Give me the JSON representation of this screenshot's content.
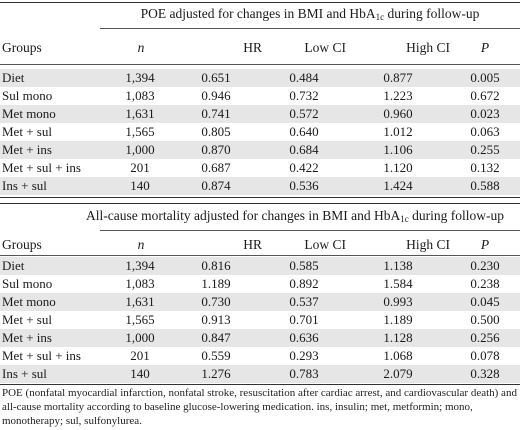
{
  "sections": [
    {
      "title_main": "POE adjusted for changes in BMI and HbA",
      "title_sub": "1c",
      "title_end": " during follow-up",
      "headers": [
        "Groups",
        "n",
        "HR",
        "Low CI",
        "High CI",
        "P"
      ],
      "rows": [
        [
          "Diet",
          "1,394",
          "0.651",
          "0.484",
          "0.877",
          "0.005"
        ],
        [
          "Sul mono",
          "1,083",
          "0.946",
          "0.732",
          "1.223",
          "0.672"
        ],
        [
          "Met mono",
          "1,631",
          "0.741",
          "0.572",
          "0.960",
          "0.023"
        ],
        [
          "Met + sul",
          "1,565",
          "0.805",
          "0.640",
          "1.012",
          "0.063"
        ],
        [
          "Met + ins",
          "1,000",
          "0.870",
          "0.684",
          "1.106",
          "0.255"
        ],
        [
          "Met + sul + ins",
          "201",
          "0.687",
          "0.422",
          "1.120",
          "0.132"
        ],
        [
          "Ins + sul",
          "140",
          "0.874",
          "0.536",
          "1.424",
          "0.588"
        ]
      ]
    },
    {
      "title_main": "All-cause mortality adjusted for changes in BMI and HbA",
      "title_sub": "1c",
      "title_end": " during follow-up",
      "headers": [
        "Groups",
        "n",
        "HR",
        "Low CI",
        "High CI",
        "P"
      ],
      "rows": [
        [
          "Diet",
          "1,394",
          "0.816",
          "0.585",
          "1.138",
          "0.230"
        ],
        [
          "Sul mono",
          "1,083",
          "1.189",
          "0.892",
          "1.584",
          "0.238"
        ],
        [
          "Met mono",
          "1,631",
          "0.730",
          "0.537",
          "0.993",
          "0.045"
        ],
        [
          "Met + sul",
          "1,565",
          "0.913",
          "0.701",
          "1.189",
          "0.500"
        ],
        [
          "Met + ins",
          "1,000",
          "0.847",
          "0.636",
          "1.128",
          "0.256"
        ],
        [
          "Met + sul + ins",
          "201",
          "0.559",
          "0.293",
          "1.068",
          "0.078"
        ],
        [
          "Ins + sul",
          "140",
          "1.276",
          "0.783",
          "2.079",
          "0.328"
        ]
      ]
    }
  ],
  "footnote": "POE (nonfatal myocardial infarction, nonfatal stroke, resuscitation after cardiac arrest, and cardiovascular death) and all-cause mortality according to baseline glucose-lowering medication. ins, insulin; met, metformin; mono, monotherapy; sul, sulfonylurea."
}
